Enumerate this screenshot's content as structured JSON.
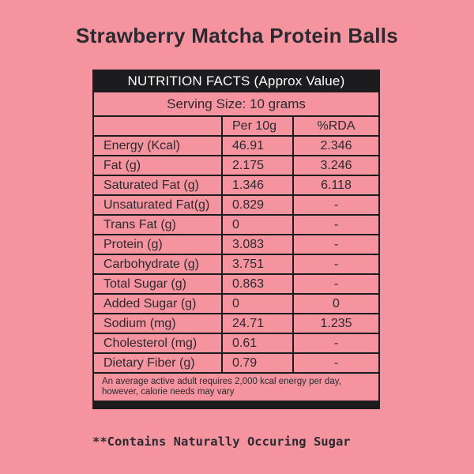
{
  "page": {
    "title": "Strawberry Matcha Protein Balls",
    "bottom_note": "**Contains Naturally Occuring Sugar"
  },
  "colors": {
    "background": "#F5939F",
    "panel_black": "#1C1C1E",
    "text_dark": "#2B2A30",
    "header_text": "#FFFFFF",
    "border": "#1C1C1E"
  },
  "nutrition_table": {
    "header": "NUTRITION FACTS (Approx Value)",
    "serving_size": "Serving Size: 10 grams",
    "columns": [
      "",
      "Per 10g",
      "%RDA"
    ],
    "rows": [
      {
        "label": "Energy (Kcal)",
        "per_10g": "46.91",
        "rda": "2.346"
      },
      {
        "label": "Fat (g)",
        "per_10g": "2.175",
        "rda": "3.246"
      },
      {
        "label": "Saturated Fat (g)",
        "per_10g": "1.346",
        "rda": "6.118"
      },
      {
        "label": "Unsaturated Fat(g)",
        "per_10g": "0.829",
        "rda": "-"
      },
      {
        "label": "Trans Fat (g)",
        "per_10g": "0",
        "rda": "-"
      },
      {
        "label": "Protein (g)",
        "per_10g": "3.083",
        "rda": "-"
      },
      {
        "label": "Carbohydrate (g)",
        "per_10g": "3.751",
        "rda": "-"
      },
      {
        "label": "Total Sugar (g)",
        "per_10g": "0.863",
        "rda": "-"
      },
      {
        "label": "Added Sugar (g)",
        "per_10g": "0",
        "rda": "0"
      },
      {
        "label": "Sodium (mg)",
        "per_10g": "24.71",
        "rda": "1.235"
      },
      {
        "label": "Cholesterol (mg)",
        "per_10g": "0.61",
        "rda": "-"
      },
      {
        "label": "Dietary Fiber (g)",
        "per_10g": "0.79",
        "rda": "-"
      }
    ],
    "footnote_line1": "An average active adult requires 2,000 kcal energy per day,",
    "footnote_line2": "however, calorie needs may vary"
  }
}
